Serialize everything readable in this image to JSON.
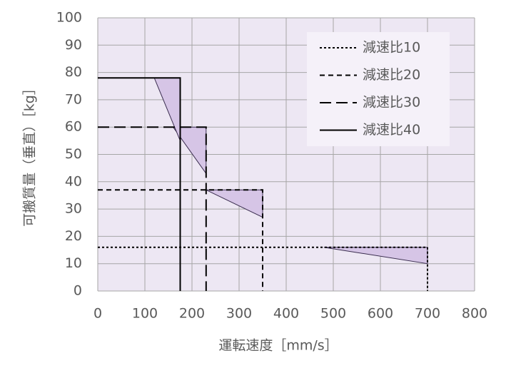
{
  "chart_data": {
    "type": "line",
    "xlabel": "運転速度［mm/s］",
    "ylabel": "可搬質量（垂直）［kg］",
    "xlim": [
      0,
      800
    ],
    "xticks": [
      0,
      100,
      200,
      300,
      400,
      500,
      600,
      700,
      800
    ],
    "ylim": [
      0,
      100
    ],
    "yticks": [
      0,
      10,
      20,
      30,
      40,
      50,
      60,
      70,
      80,
      90,
      100
    ],
    "grid": true,
    "legend": "upper right",
    "series": [
      {
        "name": "減速比10",
        "color": "#000000",
        "style": "dotted",
        "x": [
          0,
          700,
          700
        ],
        "values": [
          16,
          16,
          0
        ]
      },
      {
        "name": "減速比20",
        "color": "#000000",
        "style": "dashed",
        "x": [
          0,
          350,
          350
        ],
        "values": [
          37,
          37,
          0
        ]
      },
      {
        "name": "減速比30",
        "color": "#000000",
        "style": "longdash",
        "x": [
          0,
          230,
          230
        ],
        "values": [
          60,
          60,
          0
        ]
      },
      {
        "name": "減速比40",
        "color": "#000000",
        "style": "solid",
        "x": [
          0,
          175,
          175
        ],
        "values": [
          78,
          78,
          0
        ]
      }
    ],
    "regions": [
      {
        "color": "#d6c5e6",
        "x": [
          480,
          700,
          700
        ],
        "y": [
          16,
          16,
          10
        ]
      },
      {
        "color": "#d6c5e6",
        "x": [
          230,
          350,
          350
        ],
        "y": [
          37,
          37,
          27
        ]
      },
      {
        "color": "#d6c5e6",
        "x": [
          160,
          230,
          230
        ],
        "y": [
          60,
          60,
          43
        ]
      },
      {
        "color": "#d6c5e6",
        "x": [
          120,
          175,
          175
        ],
        "y": [
          78,
          78,
          55
        ]
      }
    ]
  }
}
